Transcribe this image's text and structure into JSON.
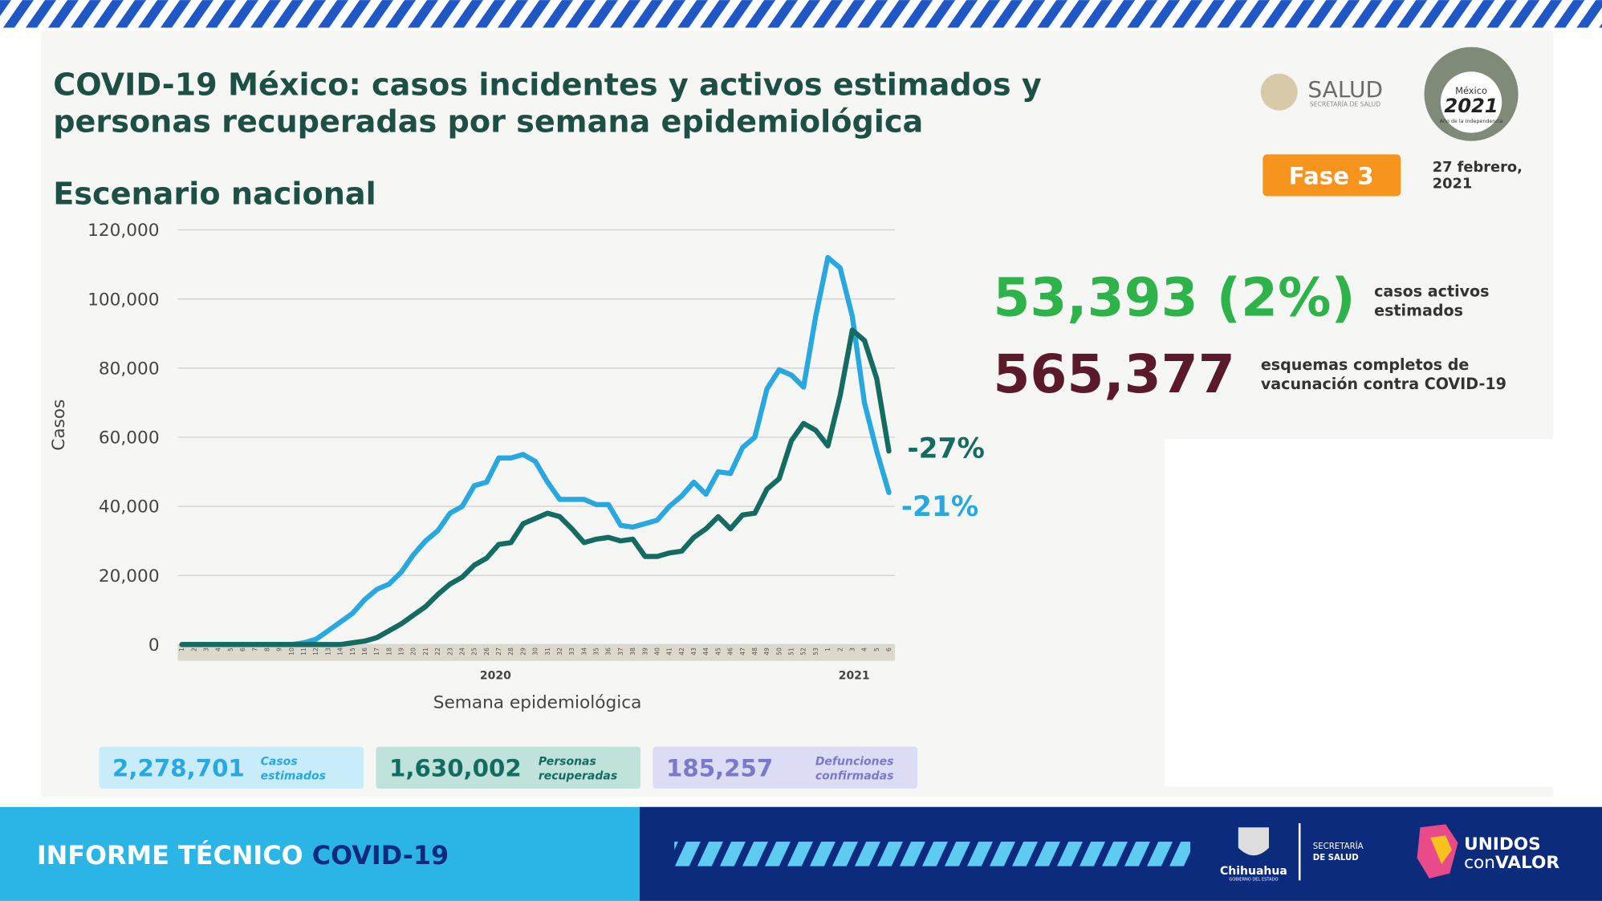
{
  "slide": {
    "title_line1": "COVID-19 México: casos incidentes y activos estimados y",
    "title_line2": "personas recuperadas por semana epidemiológica",
    "subtitle": "Escenario nacional",
    "logo_salud": "SALUD",
    "logo_salud_sub": "SECRETARÍA DE SALUD",
    "logo_2021_top": "México",
    "logo_2021_year": "2021",
    "logo_2021_sub": "Año de la Independencia",
    "phase": "Fase 3",
    "date_line1": "27 febrero,",
    "date_line2": "2021",
    "active_value": "53,393 (2%)",
    "active_label1": "casos activos",
    "active_label2": "estimados",
    "vacc_value": "565,377",
    "vacc_label1": "esquemas completos de",
    "vacc_label2": "vacunación contra COVID-19",
    "box1_value": "2,278,701",
    "box1_label1": "Casos",
    "box1_label2": "estimados",
    "box2_value": "1,630,002",
    "box2_label1": "Personas",
    "box2_label2": "recuperadas",
    "box3_value": "185,257",
    "box3_label1": "Defunciones",
    "box3_label2": "confirmadas",
    "footer_left": "INFORME TÉCNICO",
    "footer_covid": "COVID-19",
    "chihuahua": "Chihuahua",
    "chihuahua_sub": "GOBIERNO DEL ESTADO",
    "secretaria1": "SECRETARÍA",
    "secretaria2": "DE SALUD",
    "unidos": "UNIDOS",
    "con": "con",
    "valor": "VALOR"
  },
  "chart_data": {
    "type": "line",
    "y_label": "Casos",
    "x_label": "Semana epidemiológica",
    "categories": [
      "1",
      "2",
      "3",
      "4",
      "5",
      "6",
      "7",
      "8",
      "9",
      "10",
      "11",
      "12",
      "13",
      "14",
      "15",
      "16",
      "17",
      "18",
      "19",
      "20",
      "21",
      "22",
      "23",
      "24",
      "25",
      "26",
      "27",
      "28",
      "29",
      "30",
      "31",
      "32",
      "33",
      "34",
      "35",
      "36",
      "37",
      "38",
      "39",
      "40",
      "41",
      "42",
      "43",
      "44",
      "45",
      "46",
      "47",
      "48",
      "49",
      "50",
      "51",
      "52",
      "53",
      "1",
      "2",
      "3",
      "4",
      "5",
      "6"
    ],
    "year_labels": [
      "2020",
      "2021"
    ],
    "series": [
      {
        "color": "#29a8e0",
        "values": [
          0,
          0,
          0,
          0,
          0,
          0,
          0,
          0,
          0,
          0,
          500,
          1500,
          4000,
          6500,
          9000,
          13000,
          16000,
          17500,
          21000,
          26000,
          30000,
          33000,
          38000,
          40000,
          46000,
          47000,
          54000,
          54000,
          55000,
          53000,
          47000,
          42000,
          42000,
          42000,
          40500,
          40500,
          34500,
          34000,
          35000,
          36000,
          40000,
          43000,
          47000,
          43500,
          50000,
          49500,
          57000,
          60000,
          74000,
          79500,
          78000,
          74500,
          95000,
          112000,
          109000,
          95000,
          70000,
          56000,
          44000
        ]
      },
      {
        "color": "#136b62",
        "values": [
          0,
          0,
          0,
          0,
          0,
          0,
          0,
          0,
          0,
          0,
          0,
          0,
          0,
          0,
          500,
          1000,
          2000,
          4000,
          6000,
          8500,
          11000,
          14500,
          17500,
          19500,
          23000,
          25000,
          29000,
          29500,
          35000,
          36500,
          38000,
          37000,
          33500,
          29500,
          30500,
          31000,
          30000,
          30500,
          25500,
          25500,
          26500,
          27000,
          31000,
          33500,
          37000,
          33500,
          37500,
          38000,
          45000,
          48000,
          59000,
          64000,
          62000,
          57500,
          72000,
          91000,
          88000,
          77000,
          56000
        ]
      }
    ],
    "annotations": [
      "-21%",
      "-27%"
    ],
    "ylim": [
      0,
      120000
    ],
    "yticks": [
      0,
      {
        "value": 20000,
        "label": "20,000"
      },
      {
        "value": 40000,
        "label": "40,000"
      },
      {
        "value": 60000,
        "label": "60,000"
      },
      {
        "value": 80000,
        "label": "80,000"
      },
      {
        "value": 100000,
        "label": "100,000"
      },
      {
        "value": 120000,
        "label": "120,000"
      }
    ],
    "grid": true
  }
}
